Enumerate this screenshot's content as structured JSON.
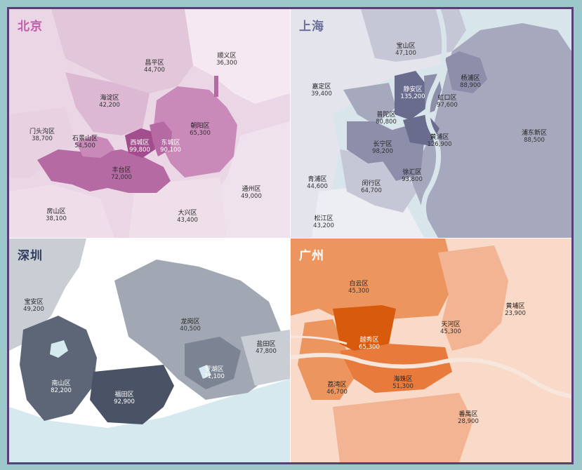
{
  "colors": {
    "beijing": [
      "#ead6e5",
      "#dcb8d3",
      "#c98ab9",
      "#b66aa4",
      "#a24d8e"
    ],
    "shanghai": [
      "#e3e4ec",
      "#c5c7d6",
      "#a6a8be",
      "#8c8eaa",
      "#6a6c8e"
    ],
    "shenzhen": [
      "#c9cdd4",
      "#a2a8b3",
      "#7c8494",
      "#5d6677",
      "#4a5265"
    ],
    "guangzhou": [
      "#f9d9c7",
      "#f2b493",
      "#ec955f",
      "#e87a3c",
      "#d85a0c"
    ],
    "water": "#d6e9ef",
    "frame": "#5a3e78"
  },
  "panels": [
    {
      "id": "beijing",
      "title": "北京",
      "title_color": "#c05ea8",
      "districts": [
        {
          "name": "顺义区",
          "value": "36,300"
        },
        {
          "name": "昌平区",
          "value": "44,700"
        },
        {
          "name": "海淀区",
          "value": "42,200"
        },
        {
          "name": "门头沟区",
          "value": "38,700"
        },
        {
          "name": "石景山区",
          "value": "54,500"
        },
        {
          "name": "西城区",
          "value": "99,800"
        },
        {
          "name": "东城区",
          "value": "90,100"
        },
        {
          "name": "朝阳区",
          "value": "65,300"
        },
        {
          "name": "丰台区",
          "value": "72,000"
        },
        {
          "name": "通州区",
          "value": "49,000"
        },
        {
          "name": "房山区",
          "value": "38,100"
        },
        {
          "name": "大兴区",
          "value": "43,400"
        }
      ]
    },
    {
      "id": "shanghai",
      "title": "上海",
      "title_color": "#6b6f9a",
      "districts": [
        {
          "name": "宝山区",
          "value": "47,100"
        },
        {
          "name": "杨浦区",
          "value": "88,900"
        },
        {
          "name": "嘉定区",
          "value": "39,400"
        },
        {
          "name": "静安区",
          "value": "135,200"
        },
        {
          "name": "虹口区",
          "value": "97,600"
        },
        {
          "name": "普陀区",
          "value": "80,800"
        },
        {
          "name": "浦东新区",
          "value": "88,500"
        },
        {
          "name": "黄浦区",
          "value": "126,900"
        },
        {
          "name": "长宁区",
          "value": "98,200"
        },
        {
          "name": "徐汇区",
          "value": "93,800"
        },
        {
          "name": "青浦区",
          "value": "44,600"
        },
        {
          "name": "闵行区",
          "value": "64,700"
        },
        {
          "name": "松江区",
          "value": "43,200"
        }
      ]
    },
    {
      "id": "shenzhen",
      "title": "深圳",
      "title_color": "#2f3c5e",
      "districts": [
        {
          "name": "宝安区",
          "value": "49,200"
        },
        {
          "name": "龙岗区",
          "value": "40,500"
        },
        {
          "name": "盐田区",
          "value": "47,800"
        },
        {
          "name": "罗湖区",
          "value": "71,100"
        },
        {
          "name": "南山区",
          "value": "82,200"
        },
        {
          "name": "福田区",
          "value": "92,900"
        }
      ]
    },
    {
      "id": "guangzhou",
      "title": "广州",
      "title_color": "#ffffff",
      "districts": [
        {
          "name": "白云区",
          "value": "45,300"
        },
        {
          "name": "黄埔区",
          "value": "23,900"
        },
        {
          "name": "天河区",
          "value": "45,300"
        },
        {
          "name": "越秀区",
          "value": "65,300"
        },
        {
          "name": "荔湾区",
          "value": "46,700"
        },
        {
          "name": "海珠区",
          "value": "51,300"
        },
        {
          "name": "番禺区",
          "value": "28,900"
        }
      ]
    }
  ]
}
